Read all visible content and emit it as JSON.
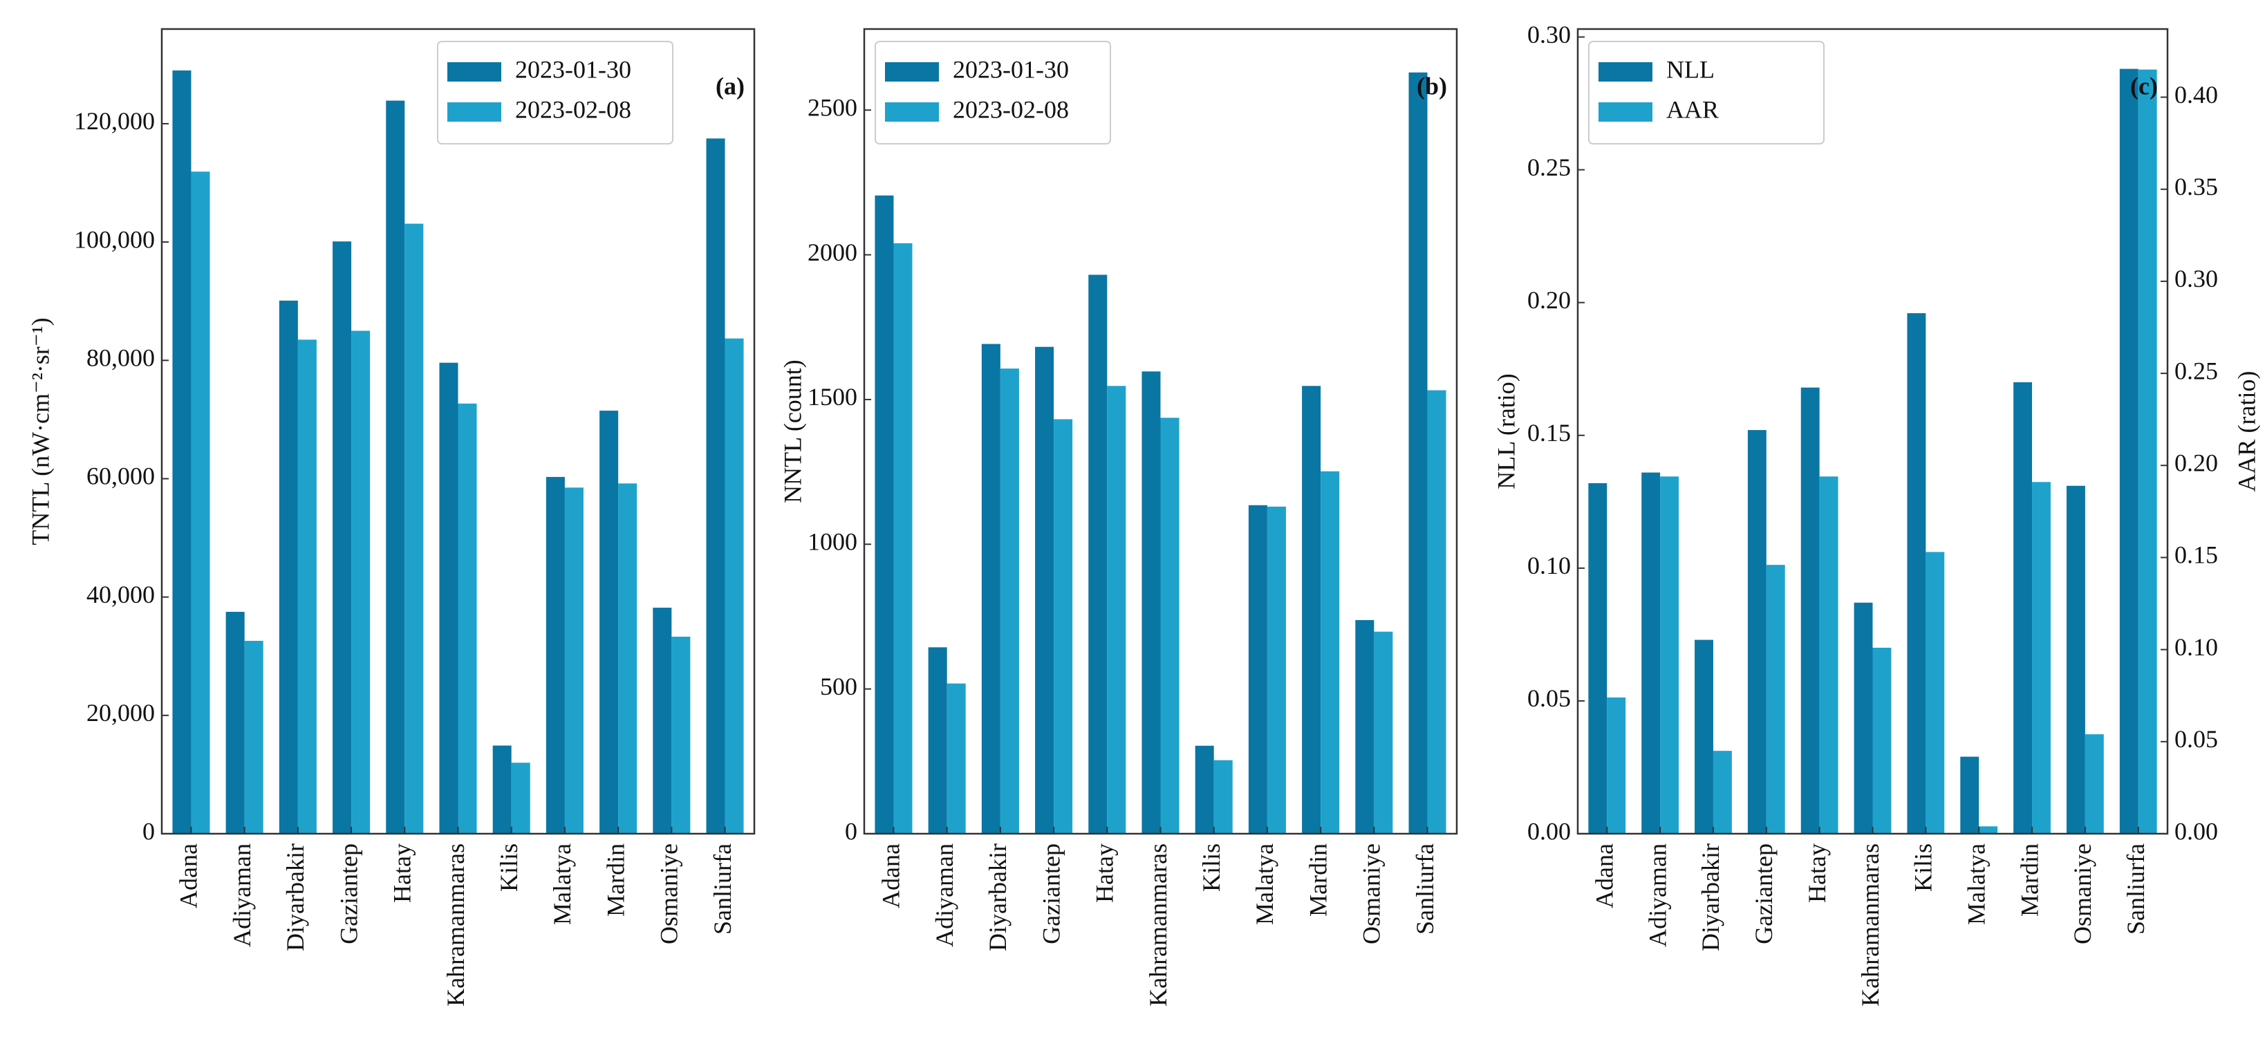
{
  "chart_data": [
    {
      "type": "bar",
      "annotation": "(a)",
      "ylabel": "TNTL (nW·cm⁻²·sr⁻¹)",
      "categories": [
        "Adana",
        "Adiyaman",
        "Diyarbakir",
        "Gaziantep",
        "Hatay",
        "Kahramanmaras",
        "Kilis",
        "Malatya",
        "Mardin",
        "Osmaniye",
        "Sanliurfa"
      ],
      "series": [
        {
          "name": "2023-01-30",
          "color": "#0a76a4",
          "values": [
            129000,
            37500,
            90100,
            100100,
            123900,
            79600,
            14900,
            60300,
            71500,
            38200,
            117500
          ]
        },
        {
          "name": "2023-02-08",
          "color": "#1ea2cc",
          "values": [
            111900,
            32600,
            83500,
            85000,
            103100,
            72700,
            12000,
            58500,
            59200,
            33300,
            83700
          ]
        }
      ],
      "ylim": [
        0,
        136000
      ],
      "yticks": [
        0,
        {
          "value": 20000,
          "label": "20,000"
        },
        {
          "value": 40000,
          "label": "40,000"
        },
        {
          "value": 60000,
          "label": "60,000"
        },
        {
          "value": 80000,
          "label": "80,000"
        },
        {
          "value": 100000,
          "label": "100,000"
        },
        {
          "value": 120000,
          "label": "120,000"
        }
      ],
      "legend": "upper right"
    },
    {
      "type": "bar",
      "annotation": "(b)",
      "ylabel": "NNTL (count)",
      "categories": [
        "Adana",
        "Adiyaman",
        "Diyarbakir",
        "Gaziantep",
        "Hatay",
        "Kahramanmaras",
        "Kilis",
        "Malatya",
        "Mardin",
        "Osmaniye",
        "Sanliurfa"
      ],
      "series": [
        {
          "name": "2023-01-30",
          "color": "#0a76a4",
          "values": [
            2205,
            644,
            1692,
            1682,
            1931,
            1597,
            304,
            1135,
            1547,
            738,
            2630
          ]
        },
        {
          "name": "2023-02-08",
          "color": "#1ea2cc",
          "values": [
            2040,
            519,
            1607,
            1432,
            1547,
            1437,
            254,
            1130,
            1252,
            698,
            1532
          ]
        }
      ],
      "ylim": [
        0,
        2780
      ],
      "yticks": [
        0,
        500,
        1000,
        1500,
        2000,
        2500
      ],
      "legend": "upper left"
    },
    {
      "type": "bar",
      "annotation": "(c)",
      "ylabel": "NLL (ratio)",
      "y2label": "AAR (ratio)",
      "categories": [
        "Adana",
        "Adiyaman",
        "Diyarbakir",
        "Gaziantep",
        "Hatay",
        "Kahramanmaras",
        "Kilis",
        "Malatya",
        "Mardin",
        "Osmaniye",
        "Sanliurfa"
      ],
      "series": [
        {
          "name": "NLL",
          "color": "#0a76a4",
          "values": [
            0.132,
            0.136,
            0.073,
            0.152,
            0.168,
            0.087,
            0.196,
            0.029,
            0.17,
            0.131,
            0.288
          ]
        },
        {
          "name": "AAR",
          "color": "#1ea2cc",
          "axis": "y2",
          "values": [
            0.074,
            0.194,
            0.045,
            0.146,
            0.194,
            0.101,
            0.153,
            0.004,
            0.191,
            0.054,
            0.415
          ]
        }
      ],
      "ylim": [
        0,
        0.303
      ],
      "yticks": [
        {
          "value": 0,
          "label": "0.00"
        },
        {
          "value": 0.05,
          "label": "0.05"
        },
        {
          "value": 0.1,
          "label": "0.10"
        },
        {
          "value": 0.15,
          "label": "0.15"
        },
        {
          "value": 0.2,
          "label": "0.20"
        },
        {
          "value": 0.25,
          "label": "0.25"
        },
        {
          "value": 0.3,
          "label": "0.30"
        }
      ],
      "y2lim": [
        0,
        0.437
      ],
      "y2ticks": [
        {
          "value": 0,
          "label": "0.00"
        },
        {
          "value": 0.05,
          "label": "0.05"
        },
        {
          "value": 0.1,
          "label": "0.10"
        },
        {
          "value": 0.15,
          "label": "0.15"
        },
        {
          "value": 0.2,
          "label": "0.20"
        },
        {
          "value": 0.25,
          "label": "0.25"
        },
        {
          "value": 0.3,
          "label": "0.30"
        },
        {
          "value": 0.35,
          "label": "0.35"
        },
        {
          "value": 0.4,
          "label": "0.40"
        }
      ],
      "legend": "upper left"
    }
  ]
}
